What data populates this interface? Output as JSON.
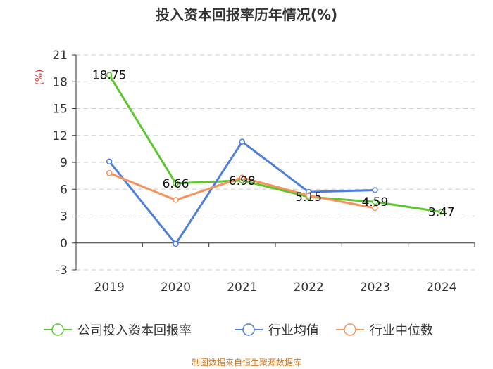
{
  "chart_data": {
    "type": "line",
    "title": "投入资本回报率历年情况(%)",
    "ylabel": "(%)",
    "xlabel": "",
    "categories": [
      "2019",
      "2020",
      "2021",
      "2022",
      "2023",
      "2024"
    ],
    "ylim": [
      -3,
      21
    ],
    "yticks": [
      -3,
      0,
      3,
      6,
      9,
      12,
      15,
      18,
      21
    ],
    "grid": true,
    "legend_position": "bottom",
    "series": [
      {
        "name": "公司投入资本回报率",
        "color": "#5cc62f",
        "values": [
          18.75,
          6.66,
          6.98,
          5.15,
          4.59,
          3.47
        ],
        "labels": [
          "18.75",
          "6.66",
          "6.98",
          "5.15",
          "4.59",
          "3.47"
        ]
      },
      {
        "name": "行业均值",
        "color": "#4e7fdc",
        "values": [
          9.1,
          -0.1,
          11.3,
          5.7,
          5.9,
          null
        ]
      },
      {
        "name": "行业中位数",
        "color": "#f5915a",
        "values": [
          7.8,
          4.8,
          7.3,
          5.3,
          3.9,
          null
        ]
      }
    ]
  },
  "source": "制图数据来自恒生聚源数据库"
}
